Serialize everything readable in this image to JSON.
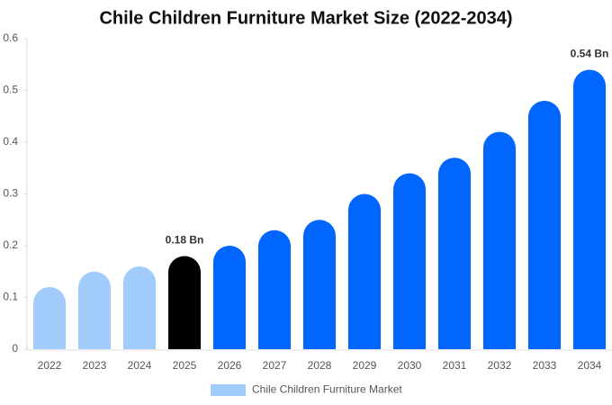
{
  "chart_data": {
    "type": "bar",
    "title": "Chile Children Furniture Market Size (2022-2034)",
    "categories": [
      "2022",
      "2023",
      "2024",
      "2025",
      "2026",
      "2027",
      "2028",
      "2029",
      "2030",
      "2031",
      "2032",
      "2033",
      "2034"
    ],
    "series": [
      {
        "name": "Chile Children Furniture Market",
        "color": "#a0cbfa",
        "values": [
          0.12,
          0.15,
          0.16,
          0.18,
          0.2,
          0.23,
          0.25,
          0.3,
          0.34,
          0.37,
          0.42,
          0.48,
          0.54
        ],
        "value_labels": [
          null,
          null,
          null,
          "0.18 Bn",
          null,
          null,
          null,
          null,
          null,
          null,
          null,
          null,
          "0.54 Bn"
        ],
        "colors": [
          "#a0cbfa",
          "#a0cbfa",
          "#a0cbfa",
          "#000000",
          "#0066ff",
          "#0066ff",
          "#0066ff",
          "#0066ff",
          "#0066ff",
          "#0066ff",
          "#0066ff",
          "#0066ff",
          "#0066ff"
        ]
      }
    ],
    "ylim": [
      0,
      0.6
    ],
    "yticks": [
      0,
      0.1,
      0.2,
      0.3,
      0.4,
      0.5,
      0.6
    ],
    "grid": false
  }
}
